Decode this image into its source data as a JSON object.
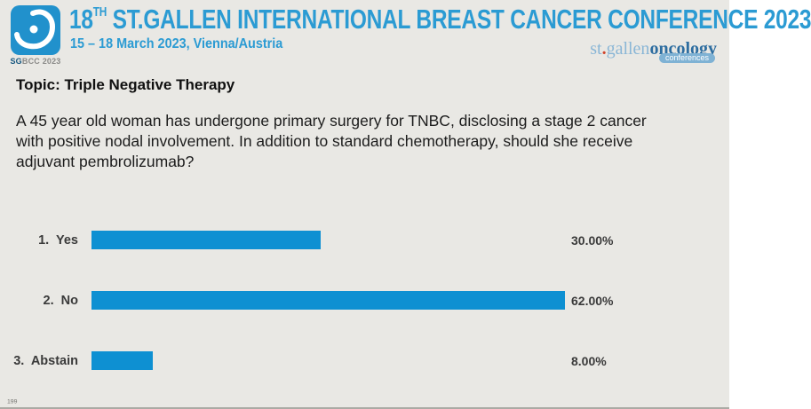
{
  "slide": {
    "background_color": "#e9e8e4"
  },
  "header": {
    "logo": {
      "mark": "breast-droplet",
      "square_color": "#2191cc",
      "badge_sg": "SG",
      "badge_bcc": "BCC",
      "badge_year": "2023"
    },
    "title_num": "18",
    "title_sup": "TH",
    "title_rest": " ST.GALLEN INTERNATIONAL BREAST CANCER CONFERENCE 2023",
    "title_color": "#2b9bd3",
    "subtitle": "15 – 18 March 2023, Vienna/Austria",
    "org": {
      "part_st": "st",
      "dot": ".",
      "part_gallen": "gallen",
      "part_oncology": "oncology",
      "badge": "conferences",
      "light_blue": "#8ab6d6",
      "dark_blue": "#2d6da0",
      "dot_color": "#d0442c"
    }
  },
  "topic_line": "Topic: Triple Negative Therapy",
  "question_lines": [
    "A 45 year old woman has undergone primary surgery for TNBC, disclosing a stage 2 cancer",
    "with positive nodal involvement. In addition to standard chemotherapy, should she receive",
    "adjuvant pembrolizumab?"
  ],
  "chart_data": {
    "type": "bar",
    "orientation": "horizontal",
    "title": "",
    "categories": [
      "Yes",
      "No",
      "Abstain"
    ],
    "row_numbers": [
      "1.",
      "2.",
      "3."
    ],
    "values": [
      30.0,
      62.0,
      8.0
    ],
    "value_labels": [
      "30.00%",
      "62.00%",
      "8.00%"
    ],
    "bar_color": "#0e90d2",
    "xlim": [
      0,
      100
    ],
    "legend": false,
    "gridlines": false
  },
  "footer": {
    "page_number": "199"
  }
}
